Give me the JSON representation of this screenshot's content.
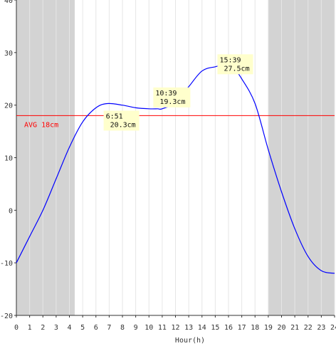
{
  "chart_data": {
    "type": "line",
    "xlabel": "Hour(h)",
    "ylabel": "",
    "xlim": [
      0,
      24
    ],
    "ylim": [
      -20,
      40
    ],
    "x_ticks": [
      0,
      1,
      2,
      3,
      4,
      5,
      6,
      7,
      8,
      9,
      10,
      11,
      12,
      13,
      14,
      15,
      16,
      17,
      18,
      19,
      20,
      21,
      22,
      23,
      24
    ],
    "y_ticks": [
      -20,
      -10,
      0,
      10,
      20,
      30,
      40
    ],
    "grid": "vertical lines at each hour",
    "shaded_periods": [
      {
        "from": 0,
        "to": 4.4
      },
      {
        "from": 19.0,
        "to": 24
      }
    ],
    "series": [
      {
        "color": "#0000ff",
        "x": [
          0,
          1,
          2,
          3,
          4,
          5,
          6,
          6.85,
          8,
          9,
          10,
          10.65,
          11,
          12,
          13,
          14,
          15,
          15.65,
          16.5,
          17,
          18,
          19,
          20,
          21,
          22,
          23,
          24
        ],
        "y": [
          -10,
          -5,
          0,
          6,
          12,
          16.8,
          19.5,
          20.3,
          20,
          19.5,
          19.3,
          19.3,
          19.3,
          20.5,
          23.5,
          26.5,
          27.3,
          27.5,
          26.5,
          25,
          20.3,
          11.5,
          3.5,
          -3.5,
          -8.8,
          -11.5,
          -12
        ]
      }
    ],
    "average": {
      "value": 18,
      "label": "AVG 18cm",
      "color": "#ff0000"
    },
    "annotations": [
      {
        "x": 6.85,
        "y": 20.3,
        "time": "6:51",
        "value": "20.3cm"
      },
      {
        "x": 10.65,
        "y": 19.3,
        "time": "10:39",
        "value": "19.3cm"
      },
      {
        "x": 15.65,
        "y": 27.5,
        "time": "15:39",
        "value": "27.5cm"
      }
    ],
    "colors": {
      "shade": "#d3d3d3",
      "grid": "#e6e6e6",
      "axis": "#333333",
      "label_bg": "#ffffcc"
    }
  }
}
